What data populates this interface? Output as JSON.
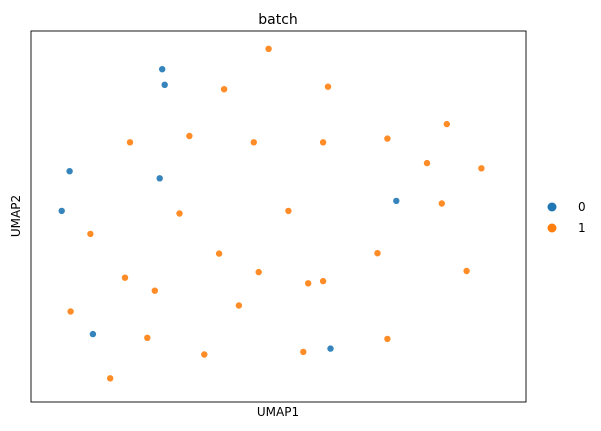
{
  "chart_data": {
    "type": "scatter",
    "title": "batch",
    "xlabel": "UMAP1",
    "ylabel": "UMAP2",
    "xlim": [
      0,
      100
    ],
    "ylim": [
      0,
      100
    ],
    "grid": false,
    "show_ticks": false,
    "legend": {
      "placement": "right",
      "entries": [
        {
          "label": "0",
          "color": "#1f77b4"
        },
        {
          "label": "1",
          "color": "#ff7f0e"
        }
      ]
    },
    "series": [
      {
        "label": "0",
        "color": "#1f77b4",
        "clusters": [
          {
            "x": 73.8,
            "y": 54.2,
            "n": 1
          },
          {
            "x": 26.5,
            "y": 89.7,
            "n": 1
          },
          {
            "x": 7.8,
            "y": 62.2,
            "n": 1
          },
          {
            "x": 6.2,
            "y": 51.5,
            "n": 1
          },
          {
            "x": 26.0,
            "y": 60.3,
            "n": 1
          },
          {
            "x": 27.0,
            "y": 85.5,
            "n": 1
          },
          {
            "x": 12.5,
            "y": 18.3,
            "n": 1
          },
          {
            "x": 60.5,
            "y": 14.4,
            "n": 1
          }
        ]
      },
      {
        "label": "1",
        "color": "#ff7f0e",
        "clusters": [
          {
            "x": 48.0,
            "y": 95.2,
            "n": 1
          },
          {
            "x": 39.0,
            "y": 84.3,
            "n": 1
          },
          {
            "x": 60.0,
            "y": 85.0,
            "n": 1
          },
          {
            "x": 45.0,
            "y": 70.0,
            "n": 1
          },
          {
            "x": 59.0,
            "y": 70.0,
            "n": 1
          },
          {
            "x": 20.0,
            "y": 70.0,
            "n": 1
          },
          {
            "x": 32.0,
            "y": 71.7,
            "n": 1
          },
          {
            "x": 72.0,
            "y": 71.0,
            "n": 1
          },
          {
            "x": 84.0,
            "y": 74.9,
            "n": 1
          },
          {
            "x": 80.0,
            "y": 64.4,
            "n": 1
          },
          {
            "x": 91.0,
            "y": 63.0,
            "n": 1
          },
          {
            "x": 52.0,
            "y": 51.5,
            "n": 1
          },
          {
            "x": 30.0,
            "y": 50.8,
            "n": 1
          },
          {
            "x": 83.0,
            "y": 53.5,
            "n": 1
          },
          {
            "x": 12.0,
            "y": 45.3,
            "n": 1
          },
          {
            "x": 38.0,
            "y": 40.0,
            "n": 1
          },
          {
            "x": 46.0,
            "y": 35.0,
            "n": 1
          },
          {
            "x": 70.0,
            "y": 40.1,
            "n": 1
          },
          {
            "x": 19.0,
            "y": 33.5,
            "n": 1
          },
          {
            "x": 25.0,
            "y": 30.0,
            "n": 1
          },
          {
            "x": 42.0,
            "y": 26.0,
            "n": 1
          },
          {
            "x": 56.0,
            "y": 32.0,
            "n": 1
          },
          {
            "x": 59.0,
            "y": 32.6,
            "n": 1
          },
          {
            "x": 88.0,
            "y": 35.3,
            "n": 1
          },
          {
            "x": 72.0,
            "y": 17.0,
            "n": 1
          },
          {
            "x": 35.0,
            "y": 12.8,
            "n": 1
          },
          {
            "x": 55.0,
            "y": 13.5,
            "n": 1
          },
          {
            "x": 23.5,
            "y": 17.3,
            "n": 1
          },
          {
            "x": 16.0,
            "y": 6.4,
            "n": 1
          },
          {
            "x": 8.0,
            "y": 24.4,
            "n": 1
          }
        ]
      }
    ]
  }
}
